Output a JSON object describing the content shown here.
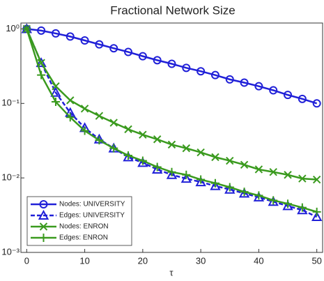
{
  "chart_data": {
    "type": "line",
    "title": "Fractional Network Size",
    "x_label": "τ",
    "x": [
      0,
      2.5,
      5,
      7.5,
      10,
      12.5,
      15,
      17.5,
      20,
      22.5,
      25,
      27.5,
      30,
      32.5,
      35,
      37.5,
      40,
      42.5,
      45,
      47.5,
      50
    ],
    "xlim": [
      -1,
      51
    ],
    "xticks": [
      0,
      10,
      20,
      30,
      40,
      50
    ],
    "ylim": [
      0.001,
      1.2
    ],
    "log_y": true,
    "yticks": [
      {
        "value": 0.001,
        "label": "10⁻³"
      },
      {
        "value": 0.01,
        "label": "10⁻²"
      },
      {
        "value": 0.1,
        "label": "10⁻¹"
      },
      {
        "value": 1,
        "label": "10⁰"
      }
    ],
    "legend": "lower left",
    "series": [
      {
        "name": "Nodes: UNIVERSITY",
        "color": "#2020d8",
        "marker": "circle",
        "linestyle": "solid",
        "values": [
          1,
          0.95,
          0.87,
          0.79,
          0.7,
          0.62,
          0.55,
          0.49,
          0.43,
          0.38,
          0.34,
          0.3,
          0.27,
          0.24,
          0.21,
          0.19,
          0.17,
          0.15,
          0.13,
          0.115,
          0.1
        ]
      },
      {
        "name": "Edges: UNIVERSITY",
        "color": "#2020d8",
        "marker": "triangle",
        "linestyle": "dashed",
        "values": [
          1,
          0.35,
          0.14,
          0.075,
          0.047,
          0.033,
          0.025,
          0.019,
          0.016,
          0.013,
          0.011,
          0.0098,
          0.0088,
          0.0078,
          0.007,
          0.0062,
          0.0055,
          0.0048,
          0.0042,
          0.0037,
          0.003
        ]
      },
      {
        "name": "Nodes: ENRON",
        "color": "#3a9a1e",
        "marker": "x",
        "linestyle": "solid",
        "values": [
          1,
          0.35,
          0.17,
          0.11,
          0.085,
          0.068,
          0.055,
          0.045,
          0.038,
          0.033,
          0.028,
          0.025,
          0.022,
          0.019,
          0.017,
          0.015,
          0.013,
          0.012,
          0.011,
          0.0098,
          0.0095
        ]
      },
      {
        "name": "Edges: ENRON",
        "color": "#3a9a1e",
        "marker": "plus",
        "linestyle": "solid",
        "values": [
          1,
          0.24,
          0.105,
          0.065,
          0.043,
          0.032,
          0.025,
          0.02,
          0.017,
          0.014,
          0.012,
          0.011,
          0.0095,
          0.0085,
          0.0075,
          0.0065,
          0.0058,
          0.005,
          0.0045,
          0.004,
          0.0035
        ]
      }
    ]
  }
}
